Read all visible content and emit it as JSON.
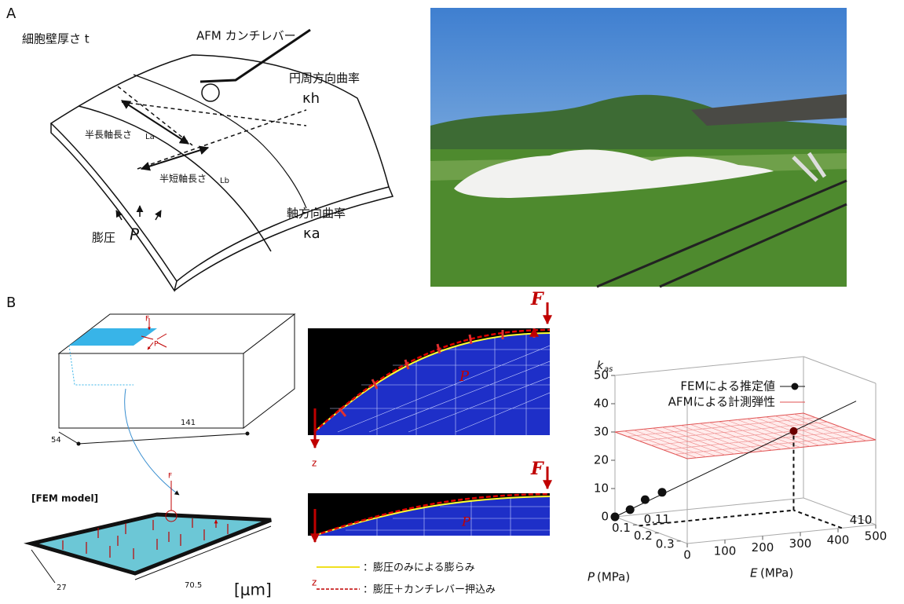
{
  "panel_a": {
    "label": "A",
    "wall_thickness": "細胞壁厚さ t",
    "cantilever": "AFM カンチレバー",
    "hoop_curvature": "円周方向曲率",
    "kappa_h": "κh",
    "major_axis": "半長軸長さ",
    "major_symbol": "La",
    "minor_axis": "半短軸長さ",
    "minor_symbol": "Lb",
    "axial_curvature": "軸方向曲率",
    "kappa_a": "κa",
    "turgor": "膨圧",
    "pressure": "P"
  },
  "panel_b": {
    "label": "B",
    "force": "F",
    "pressure": "P",
    "length": "141",
    "width": "54",
    "fem_model": "[FEM model]",
    "fem_force": "F",
    "fem_width": "27",
    "fem_length": "70.5",
    "unit": "[μm]",
    "top_force": "F",
    "top_pressure": "P",
    "top_z": "z",
    "bottom_force": "F",
    "bottom_pressure": "P",
    "bottom_z": "z",
    "legend": [
      "：膨圧のみによる膨らみ",
      "：膨圧＋カンチレバー押込み"
    ]
  },
  "plot": {
    "z_label": "k",
    "z_label_sub": "as",
    "fem": "FEMによる推定値",
    "afm": "AFMによる計測弾性",
    "zlim": [
      0,
      50
    ],
    "zticks": [
      0,
      10,
      20,
      30,
      40,
      50
    ],
    "elim": [
      0,
      500
    ],
    "eticks": [
      0,
      100,
      200,
      300,
      400,
      500
    ],
    "plim": [
      0,
      0.33
    ],
    "pticks": [
      0.1,
      0.2,
      0.3
    ],
    "p_note": 0.11,
    "e_note": 410,
    "p_axis": "P",
    "e_axis": "E",
    "unit_p": "(MPa)",
    "unit_e": "(MPa)",
    "fem_points": {
      "e": [
        0,
        40,
        80,
        125,
        410
      ],
      "p": [
        0,
        0,
        0,
        0,
        0.11
      ],
      "kas": [
        0,
        2,
        5,
        7,
        28
      ]
    },
    "afm_plane": 30
  }
}
